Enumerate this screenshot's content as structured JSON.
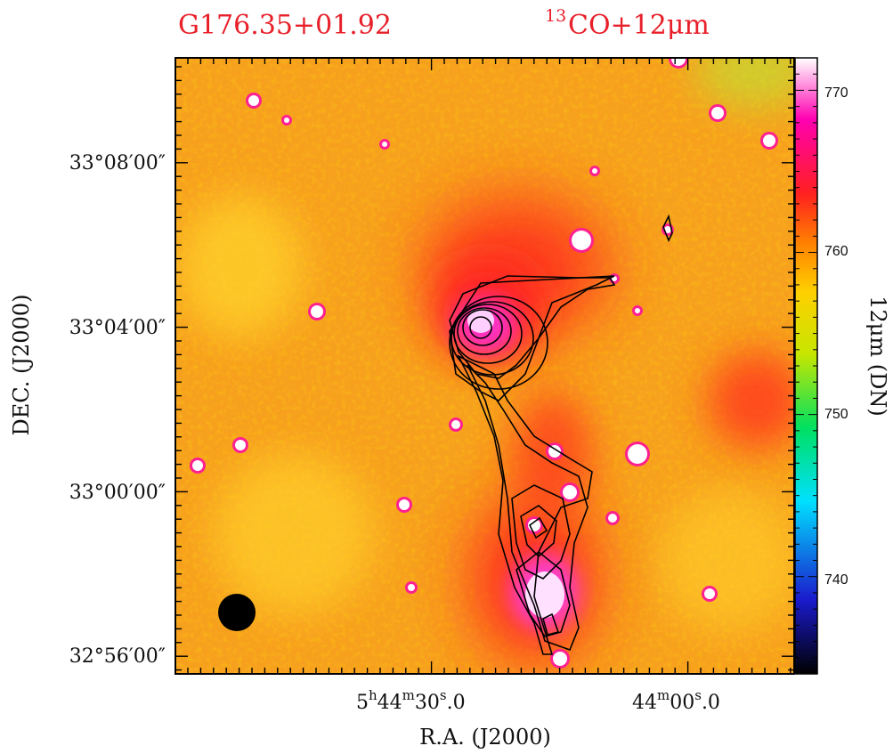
{
  "chart_data": {
    "type": "heatmap",
    "title_left": "G176.35+01.92",
    "title_right_sup": "13",
    "title_right": "CO+12μm",
    "xlabel": "R.A. (J2000)",
    "ylabel": "DEC. (J2000)",
    "x_ticks": [
      {
        "h": "5",
        "m": "44",
        "s": "30",
        "frac": ".0"
      },
      {
        "h": "",
        "m": "44",
        "s": "00",
        "frac": ".0"
      }
    ],
    "y_ticks": [
      "33°08′00″",
      "33°04′00″",
      "33°00′00″",
      "32°56′00″"
    ],
    "colorbar": {
      "label": "12μm (DN)",
      "ticks": [
        770,
        760,
        750,
        740
      ],
      "range": [
        734,
        772
      ],
      "colors": [
        "#000000",
        "#1a1acc",
        "#00e0ff",
        "#00e060",
        "#c8e600",
        "#ffd000",
        "#ff8000",
        "#ff2020",
        "#ff00b0",
        "#ffffff"
      ]
    },
    "background_color": "#f7a01e",
    "beam": "filled black circle (lower left)",
    "point_sources": 24,
    "contours": [
      {
        "name": "northern-core-peak",
        "levels": 8
      },
      {
        "name": "filament-southern-clump",
        "levels": 6
      }
    ]
  }
}
